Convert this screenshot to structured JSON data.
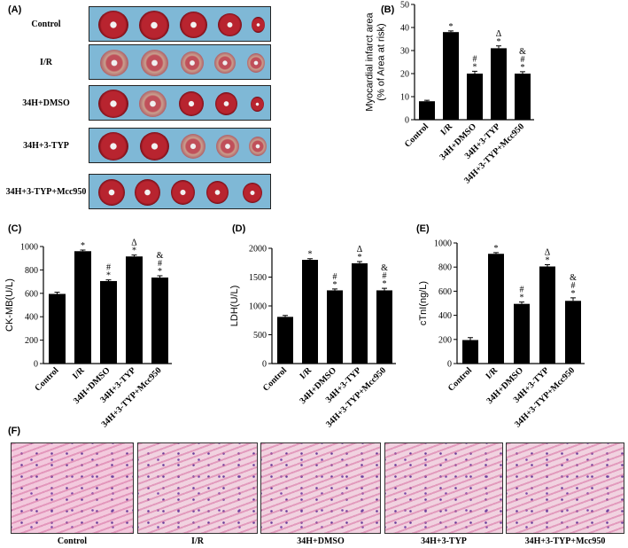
{
  "panel_labels": {
    "a": "(A)",
    "b": "(B)",
    "c": "(C)",
    "d": "(D)",
    "e": "(E)",
    "f": "(F)"
  },
  "photo_rows": [
    {
      "label": "Control"
    },
    {
      "label": "I/R"
    },
    {
      "label": "34H+DMSO"
    },
    {
      "label": "34H+3-TYP"
    },
    {
      "label": "34H+3-TYP+Mcc950"
    }
  ],
  "histology": [
    {
      "label": "Control"
    },
    {
      "label": "I/R"
    },
    {
      "label": "34H+DMSO"
    },
    {
      "label": "34H+3-TYP"
    },
    {
      "label": "34H+3-TYP+Mcc950"
    }
  ],
  "chart_data": [
    {
      "id": "B",
      "type": "bar",
      "categories": [
        "Control",
        "I/R",
        "34H+DMSO",
        "34H+3-TYP",
        "34H+3-TYP+Mcc950"
      ],
      "values": [
        8,
        38,
        20,
        31,
        20
      ],
      "errors": [
        0.4,
        0.5,
        1.0,
        1.0,
        0.8
      ],
      "annotations": [
        "",
        "*",
        "*\n#",
        "*\nΔ",
        "*\n#\n&"
      ],
      "ylabel": "Myocardial infarct area\n(% of Area at risk)",
      "ylim": [
        0,
        50
      ],
      "yticks": [
        0,
        10,
        20,
        30,
        40,
        50
      ],
      "color": "#000000"
    },
    {
      "id": "C",
      "type": "bar",
      "categories": [
        "Control",
        "I/R",
        "34H+DMSO",
        "34H+3-TYP",
        "34H+3-TYP+Mcc950"
      ],
      "values": [
        595,
        960,
        705,
        915,
        735
      ],
      "errors": [
        15,
        10,
        10,
        12,
        15
      ],
      "annotations": [
        "",
        "*",
        "*\n#",
        "*\nΔ",
        "*\n#\n&"
      ],
      "ylabel": "CK-MB(U/L)",
      "ylim": [
        0,
        1000
      ],
      "yticks": [
        0,
        200,
        400,
        600,
        800,
        1000
      ],
      "color": "#000000"
    },
    {
      "id": "D",
      "type": "bar",
      "categories": [
        "Control",
        "I/R",
        "34H+DMSO",
        "34H+3-TYP",
        "34H+3-TYP+Mcc950"
      ],
      "values": [
        810,
        1800,
        1270,
        1740,
        1270
      ],
      "errors": [
        25,
        20,
        25,
        30,
        35
      ],
      "annotations": [
        "",
        "*",
        "*\n#",
        "*\nΔ",
        "*\n#\n&"
      ],
      "ylabel": "LDH(U/L)",
      "ylim": [
        0,
        2000
      ],
      "yticks": [
        0,
        500,
        1000,
        1500,
        2000
      ],
      "color": "#000000"
    },
    {
      "id": "E",
      "type": "bar",
      "categories": [
        "Control",
        "I/R",
        "34H+DMSO",
        "34H+3-TYP",
        "34H+3-TYP+Mcc950"
      ],
      "values": [
        195,
        910,
        495,
        805,
        520
      ],
      "errors": [
        20,
        10,
        15,
        15,
        25
      ],
      "annotations": [
        "",
        "*",
        "*\n#",
        "*\nΔ",
        "*\n#\n&"
      ],
      "ylabel": "cTnI(ng/L)",
      "ylim": [
        0,
        1000
      ],
      "yticks": [
        0,
        200,
        400,
        600,
        800,
        1000
      ],
      "color": "#000000"
    }
  ]
}
